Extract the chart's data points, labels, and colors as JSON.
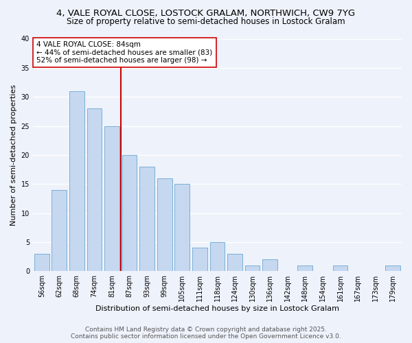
{
  "title_line1": "4, VALE ROYAL CLOSE, LOSTOCK GRALAM, NORTHWICH, CW9 7YG",
  "title_line2": "Size of property relative to semi-detached houses in Lostock Gralam",
  "xlabel": "Distribution of semi-detached houses by size in Lostock Gralam",
  "ylabel": "Number of semi-detached properties",
  "categories": [
    "56sqm",
    "62sqm",
    "68sqm",
    "74sqm",
    "81sqm",
    "87sqm",
    "93sqm",
    "99sqm",
    "105sqm",
    "111sqm",
    "118sqm",
    "124sqm",
    "130sqm",
    "136sqm",
    "142sqm",
    "148sqm",
    "154sqm",
    "161sqm",
    "167sqm",
    "173sqm",
    "179sqm"
  ],
  "values": [
    3,
    14,
    31,
    28,
    25,
    20,
    18,
    16,
    15,
    4,
    5,
    3,
    1,
    2,
    0,
    1,
    0,
    1,
    0,
    0,
    1
  ],
  "bar_color": "#c5d8f0",
  "bar_edge_color": "#7aafd4",
  "vline_color": "#cc0000",
  "annotation_text": "4 VALE ROYAL CLOSE: 84sqm\n← 44% of semi-detached houses are smaller (83)\n52% of semi-detached houses are larger (98) →",
  "annotation_box_color": "#ffffff",
  "annotation_box_edge": "#cc0000",
  "ylim": [
    0,
    40
  ],
  "yticks": [
    0,
    5,
    10,
    15,
    20,
    25,
    30,
    35,
    40
  ],
  "background_color": "#eef2fb",
  "grid_color": "#ffffff",
  "footer_line1": "Contains HM Land Registry data © Crown copyright and database right 2025.",
  "footer_line2": "Contains public sector information licensed under the Open Government Licence v3.0.",
  "title_fontsize": 9.5,
  "subtitle_fontsize": 8.5,
  "axis_label_fontsize": 8,
  "tick_fontsize": 7,
  "annotation_fontsize": 7.5,
  "footer_fontsize": 6.5
}
